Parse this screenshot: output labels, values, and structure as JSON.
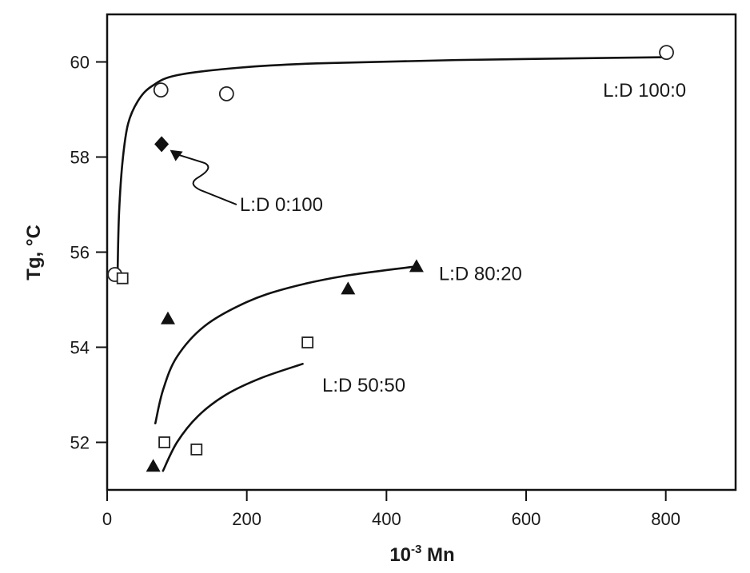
{
  "chart_data": {
    "type": "scatter",
    "title": "",
    "xlabel": "10^-3 Mn",
    "xlabel_base": "10",
    "xlabel_exp": "-3",
    "xlabel_rest": " Mn",
    "ylabel": "Tg, °C",
    "xlim": [
      0,
      900
    ],
    "ylim": [
      51,
      61
    ],
    "xticks": [
      0,
      200,
      400,
      600,
      800
    ],
    "yticks": [
      52,
      54,
      56,
      58,
      60
    ],
    "grid": false,
    "legend": "none (inline annotations)",
    "series": [
      {
        "name": "L:D 100:0",
        "marker": "open-circle",
        "points": [
          [
            11,
            55.53
          ],
          [
            77,
            59.41
          ],
          [
            171,
            59.33
          ],
          [
            801,
            60.2
          ]
        ],
        "fit_curve": [
          [
            15,
            55.6
          ],
          [
            17,
            56.8
          ],
          [
            22,
            57.9
          ],
          [
            30,
            58.7
          ],
          [
            45,
            59.2
          ],
          [
            65,
            59.5
          ],
          [
            100,
            59.72
          ],
          [
            190,
            59.88
          ],
          [
            300,
            59.97
          ],
          [
            500,
            60.04
          ],
          [
            801,
            60.1
          ]
        ]
      },
      {
        "name": "L:D 0:100",
        "marker": "filled-diamond",
        "points": [
          [
            78,
            58.27
          ]
        ]
      },
      {
        "name": "L:D 80:20",
        "marker": "filled-triangle",
        "points": [
          [
            66,
            51.5
          ],
          [
            87,
            54.6
          ],
          [
            345,
            55.23
          ],
          [
            443,
            55.7
          ]
        ],
        "fit_curve": [
          [
            69,
            52.4
          ],
          [
            80,
            53.1
          ],
          [
            100,
            53.8
          ],
          [
            140,
            54.45
          ],
          [
            200,
            54.95
          ],
          [
            260,
            55.25
          ],
          [
            340,
            55.5
          ],
          [
            443,
            55.7
          ]
        ]
      },
      {
        "name": "L:D 50:50",
        "marker": "open-square",
        "points": [
          [
            22,
            55.45
          ],
          [
            82,
            52.0
          ],
          [
            128,
            51.85
          ],
          [
            287,
            54.1
          ]
        ],
        "fit_curve": [
          [
            80,
            51.4
          ],
          [
            100,
            52.0
          ],
          [
            130,
            52.55
          ],
          [
            170,
            53.0
          ],
          [
            220,
            53.35
          ],
          [
            280,
            53.65
          ]
        ]
      }
    ],
    "annotations": [
      {
        "text": "L:D 100:0",
        "x": 710,
        "y": 59.4
      },
      {
        "text": "L:D 0:100",
        "x": 190,
        "y": 57.0,
        "arrow_to": [
          90,
          58.15
        ],
        "wavy_arrow": true
      },
      {
        "text": "L:D 80:20",
        "x": 475,
        "y": 55.55
      },
      {
        "text": "L:D 50:50",
        "x": 308,
        "y": 53.2
      }
    ]
  }
}
